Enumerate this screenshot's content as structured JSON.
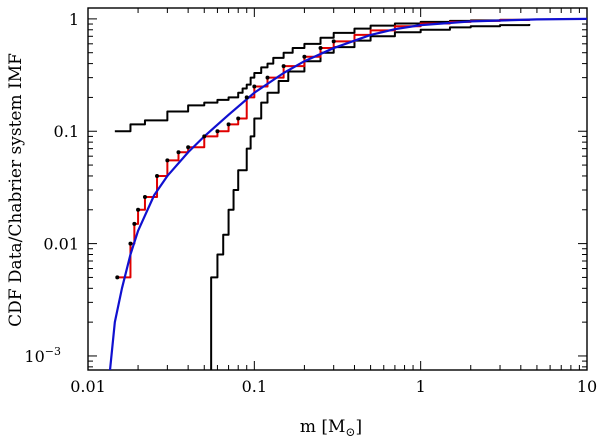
{
  "chart_data": {
    "type": "line",
    "xlabel": "m [M",
    "xlabel_sub": "⊙",
    "xlabel_close": "]",
    "ylabel": "CDF Data/Chabrier system IMF",
    "xscale": "log",
    "yscale": "log",
    "xlim": [
      0.01,
      10
    ],
    "ylim": [
      0.00075,
      1.25
    ],
    "x_ticks": [
      {
        "value": 0.01,
        "label": "0.01"
      },
      {
        "value": 0.1,
        "label": "0.1"
      },
      {
        "value": 1,
        "label": "1"
      },
      {
        "value": 10,
        "label": "10"
      }
    ],
    "y_ticks": [
      {
        "value": 0.001,
        "label": "10",
        "sup": "−3"
      },
      {
        "value": 0.01,
        "label": "0.01"
      },
      {
        "value": 0.1,
        "label": "0.1"
      },
      {
        "value": 1,
        "label": "1"
      }
    ],
    "series": [
      {
        "kind": "step",
        "color": "#000000",
        "x": [
          0.0145,
          0.018,
          0.022,
          0.03,
          0.04,
          0.05,
          0.06,
          0.07,
          0.08,
          0.085,
          0.09,
          0.095,
          0.1,
          0.11,
          0.12,
          0.13,
          0.15,
          0.17,
          0.2,
          0.25,
          0.3,
          0.4,
          0.5,
          0.7,
          1.0,
          1.5,
          2.0,
          3.0,
          4.5
        ],
        "y": [
          0.1,
          0.115,
          0.125,
          0.15,
          0.17,
          0.18,
          0.19,
          0.2,
          0.22,
          0.24,
          0.26,
          0.3,
          0.33,
          0.37,
          0.4,
          0.45,
          0.5,
          0.55,
          0.6,
          0.68,
          0.75,
          0.82,
          0.87,
          0.91,
          0.94,
          0.96,
          0.97,
          0.98,
          0.99
        ]
      },
      {
        "kind": "step",
        "color": "#000000",
        "x": [
          0.05,
          0.055,
          0.06,
          0.065,
          0.07,
          0.075,
          0.08,
          0.09,
          0.095,
          0.1,
          0.11,
          0.12,
          0.14,
          0.16,
          0.2,
          0.25,
          0.3,
          0.4,
          0.5,
          0.7,
          1.0,
          1.5,
          2.0,
          3.0,
          4.5
        ],
        "y": [
          0.0005,
          0.005,
          0.008,
          0.012,
          0.02,
          0.03,
          0.045,
          0.07,
          0.09,
          0.13,
          0.18,
          0.22,
          0.28,
          0.34,
          0.42,
          0.5,
          0.56,
          0.64,
          0.7,
          0.76,
          0.8,
          0.84,
          0.86,
          0.88,
          0.9
        ]
      },
      {
        "kind": "step",
        "color": "#e00000",
        "x": [
          0.015,
          0.018,
          0.019,
          0.02,
          0.022,
          0.026,
          0.03,
          0.035,
          0.04,
          0.05,
          0.06,
          0.07,
          0.08,
          0.09,
          0.1,
          0.12,
          0.15,
          0.2,
          0.25,
          0.3,
          0.4,
          0.5,
          0.7,
          1.0,
          1.5,
          2.0,
          3.0,
          4.5
        ],
        "y": [
          0.005,
          0.01,
          0.015,
          0.02,
          0.026,
          0.04,
          0.055,
          0.065,
          0.072,
          0.09,
          0.1,
          0.115,
          0.13,
          0.2,
          0.25,
          0.3,
          0.38,
          0.46,
          0.55,
          0.63,
          0.72,
          0.79,
          0.86,
          0.91,
          0.94,
          0.96,
          0.98,
          1.0
        ]
      },
      {
        "kind": "curve",
        "color": "#1010d0",
        "x": [
          0.0135,
          0.0145,
          0.016,
          0.018,
          0.02,
          0.025,
          0.03,
          0.04,
          0.05,
          0.07,
          0.1,
          0.15,
          0.2,
          0.3,
          0.5,
          0.7,
          1.0,
          2.0,
          5.0,
          10.0
        ],
        "y": [
          0.0007,
          0.002,
          0.004,
          0.008,
          0.013,
          0.027,
          0.04,
          0.065,
          0.09,
          0.14,
          0.22,
          0.33,
          0.42,
          0.55,
          0.72,
          0.81,
          0.88,
          0.95,
          0.99,
          1.0
        ]
      }
    ],
    "markers": {
      "color": "#000000",
      "x": [
        0.015,
        0.018,
        0.019,
        0.02,
        0.022,
        0.026,
        0.03,
        0.035,
        0.04,
        0.05,
        0.06,
        0.07,
        0.08,
        0.09,
        0.1,
        0.12,
        0.15,
        0.2,
        0.25,
        0.3
      ],
      "y": [
        0.005,
        0.01,
        0.015,
        0.02,
        0.026,
        0.04,
        0.055,
        0.065,
        0.072,
        0.09,
        0.1,
        0.115,
        0.13,
        0.2,
        0.25,
        0.3,
        0.38,
        0.46,
        0.55,
        0.63
      ]
    }
  }
}
